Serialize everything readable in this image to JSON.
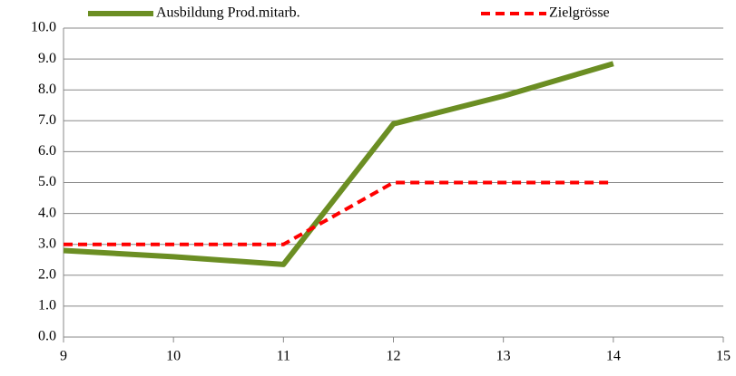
{
  "chart_data": {
    "type": "line",
    "x": [
      9,
      10,
      11,
      12,
      13,
      14
    ],
    "series": [
      {
        "name": "Ausbildung Prod.mitarb.",
        "color": "#6b8e23",
        "dash": false,
        "values": [
          2.8,
          2.6,
          2.35,
          6.9,
          7.8,
          8.85
        ]
      },
      {
        "name": "Zielgrösse",
        "color": "#ff0000",
        "dash": true,
        "values": [
          3,
          3,
          3,
          5,
          5,
          5
        ]
      }
    ],
    "xlim": [
      9,
      15
    ],
    "xticks": [
      9,
      10,
      11,
      12,
      13,
      14,
      15
    ],
    "ylim": [
      0,
      10
    ],
    "yticks": [
      {
        "value": 0,
        "label": "0.0"
      },
      {
        "value": 1,
        "label": "1.0"
      },
      {
        "value": 2,
        "label": "2.0"
      },
      {
        "value": 3,
        "label": "3.0"
      },
      {
        "value": 4,
        "label": "4.0"
      },
      {
        "value": 5,
        "label": "5.0"
      },
      {
        "value": 6,
        "label": "6.0"
      },
      {
        "value": 7,
        "label": "7.0"
      },
      {
        "value": 8,
        "label": "8.0"
      },
      {
        "value": 9,
        "label": "9.0"
      },
      {
        "value": 10,
        "label": "10.0"
      }
    ],
    "grid": true,
    "legend": "top"
  }
}
